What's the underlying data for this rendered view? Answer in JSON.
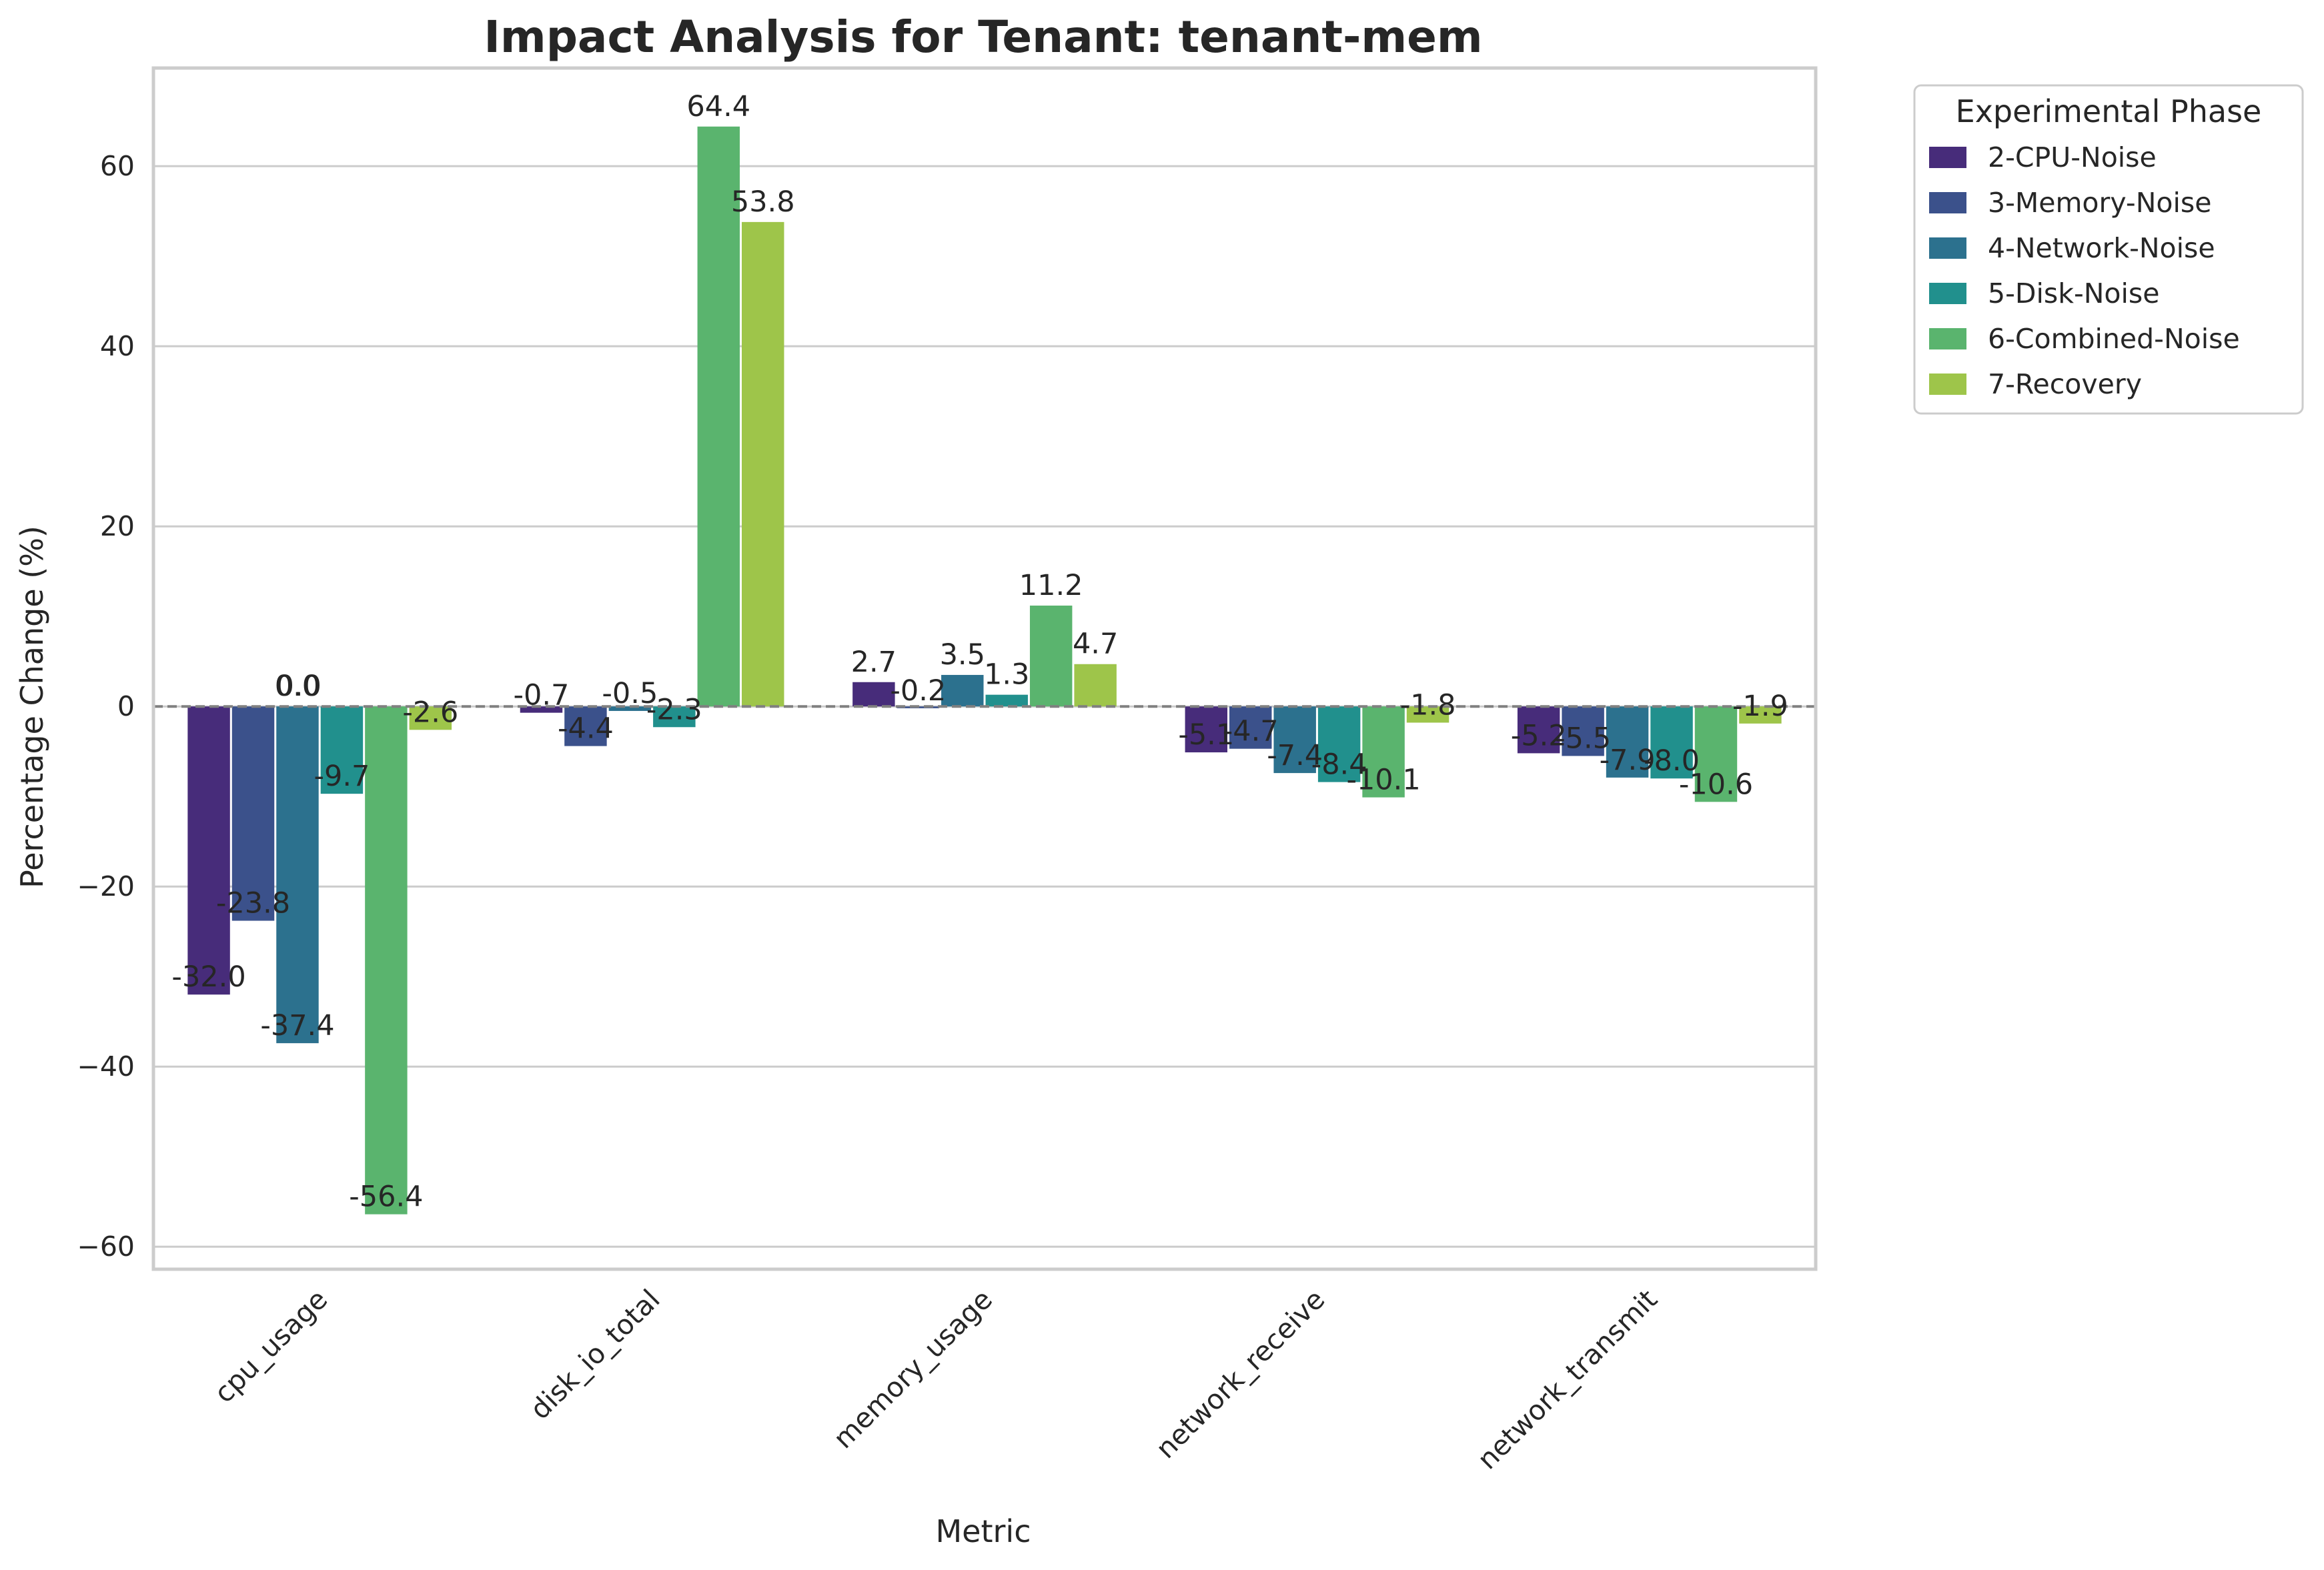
{
  "chart_data": {
    "type": "bar",
    "title": "Impact Analysis for Tenant: tenant-mem",
    "xlabel": "Metric",
    "ylabel": "Percentage Change (%)",
    "ylim": [
      -62.5,
      70.9
    ],
    "yticks": [
      -60,
      -40,
      -20,
      0,
      20,
      40,
      60
    ],
    "ytick_labels": [
      "−60",
      "−40",
      "−20",
      "0",
      "20",
      "40",
      "60"
    ],
    "grid": "horizontal",
    "zero_line": "dashed",
    "categories": [
      "cpu_usage",
      "disk_io_total",
      "memory_usage",
      "network_receive",
      "network_transmit"
    ],
    "legend": {
      "title": "Experimental Phase",
      "placement": "outside-right"
    },
    "series": [
      {
        "name": "2-CPU-Noise",
        "color": "#472c7a",
        "values": [
          -32.0,
          -0.7,
          2.7,
          -5.1,
          -5.2
        ],
        "labels": [
          "-32.0",
          "-0.7",
          "2.7",
          "-5.1",
          "-5.2"
        ]
      },
      {
        "name": "3-Memory-Noise",
        "color": "#3b518b",
        "values": [
          -23.8,
          -4.4,
          -0.2,
          -4.7,
          -5.5
        ],
        "labels": [
          "-23.8",
          "-4.4",
          "-0.2",
          "-4.7",
          "-5.5"
        ]
      },
      {
        "name": "4-Network-Noise",
        "color": "#2c718e",
        "values": [
          -37.4,
          -0.5,
          3.5,
          -7.4,
          -7.9
        ],
        "labels": [
          "-37.4",
          "-0.5",
          "3.5",
          "-7.4",
          "-7.9"
        ]
      },
      {
        "name": "5-Disk-Noise",
        "color": "#21908d",
        "values": [
          -9.7,
          -2.3,
          1.3,
          -8.4,
          -8.0
        ],
        "labels": [
          "-9.7",
          "-2.3",
          "1.3",
          "-8.4",
          "-8.0"
        ]
      },
      {
        "name": "6-Combined-Noise",
        "color": "#5ab46e",
        "values": [
          -56.4,
          64.4,
          11.2,
          -10.1,
          -10.6
        ],
        "labels": [
          "-56.4",
          "64.4",
          "11.2",
          "-10.1",
          "-10.6"
        ]
      },
      {
        "name": "7-Recovery",
        "color": "#9ec54a",
        "values": [
          -2.6,
          53.8,
          4.7,
          -1.8,
          -1.9
        ],
        "labels": [
          "-2.6",
          "53.8",
          "4.7",
          "-1.8",
          "-1.9"
        ]
      }
    ],
    "extra_labels": [
      "0.0",
      "0.0"
    ]
  }
}
